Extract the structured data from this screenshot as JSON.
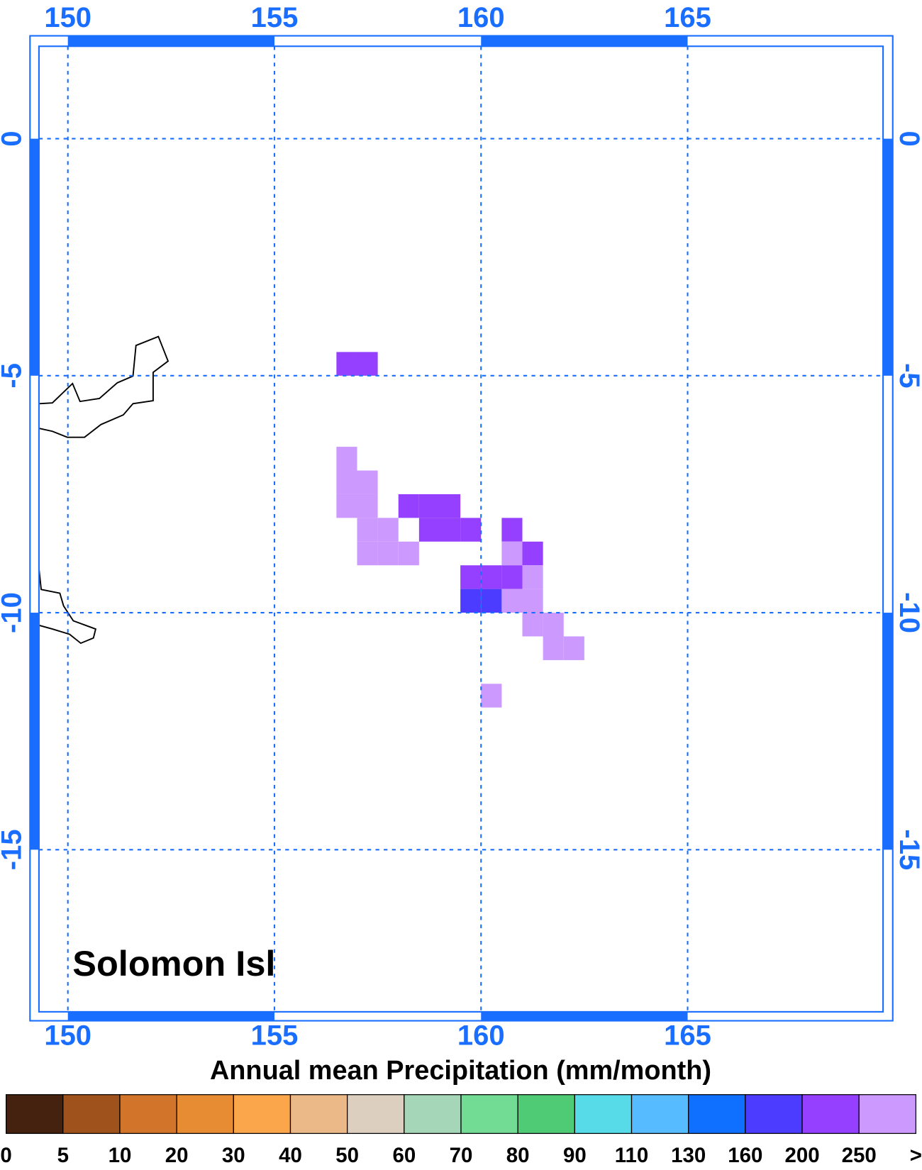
{
  "chart_data": {
    "type": "map",
    "title": "Solomon Isl",
    "xlim": [
      149.3,
      169.73
    ],
    "ylim": [
      -18.42,
      1.95
    ],
    "xticks": [
      150,
      155,
      160,
      165
    ],
    "yticks": [
      0,
      -5,
      -10,
      -15
    ],
    "grid": true,
    "axis_color": "#1a6eff",
    "colorbar": {
      "title": "Annual mean Precipitation (mm/month)",
      "labels": [
        0,
        5,
        10,
        20,
        30,
        40,
        50,
        60,
        70,
        80,
        90,
        110,
        130,
        160,
        200,
        250,
        ">"
      ],
      "colors": [
        "#44220f",
        "#a0521c",
        "#d2742a",
        "#e88c34",
        "#fba64a",
        "#ebb987",
        "#dccfc0",
        "#a6d6b8",
        "#72db94",
        "#4ecb74",
        "#58dbe8",
        "#57bbff",
        "#0f6fff",
        "#4b3cff",
        "#9640ff",
        "#cc99ff"
      ]
    },
    "cells": [
      {
        "lon": 156.5,
        "lat": -4.5,
        "color": "#9640ff"
      },
      {
        "lon": 157.0,
        "lat": -4.5,
        "color": "#9640ff"
      },
      {
        "lon": 156.5,
        "lat": -6.5,
        "color": "#cc99ff"
      },
      {
        "lon": 156.5,
        "lat": -7.0,
        "color": "#cc99ff"
      },
      {
        "lon": 156.5,
        "lat": -7.5,
        "color": "#cc99ff"
      },
      {
        "lon": 157.0,
        "lat": -7.0,
        "color": "#cc99ff"
      },
      {
        "lon": 157.0,
        "lat": -7.5,
        "color": "#cc99ff"
      },
      {
        "lon": 157.0,
        "lat": -8.0,
        "color": "#cc99ff"
      },
      {
        "lon": 157.0,
        "lat": -8.5,
        "color": "#cc99ff"
      },
      {
        "lon": 158.0,
        "lat": -7.5,
        "color": "#9640ff"
      },
      {
        "lon": 158.5,
        "lat": -7.5,
        "color": "#9640ff"
      },
      {
        "lon": 159.0,
        "lat": -7.5,
        "color": "#9640ff"
      },
      {
        "lon": 157.5,
        "lat": -8.0,
        "color": "#cc99ff"
      },
      {
        "lon": 157.5,
        "lat": -8.5,
        "color": "#cc99ff"
      },
      {
        "lon": 158.0,
        "lat": -8.5,
        "color": "#cc99ff"
      },
      {
        "lon": 158.5,
        "lat": -8.0,
        "color": "#9640ff"
      },
      {
        "lon": 159.0,
        "lat": -8.0,
        "color": "#9640ff"
      },
      {
        "lon": 159.5,
        "lat": -8.0,
        "color": "#9640ff"
      },
      {
        "lon": 160.5,
        "lat": -8.0,
        "color": "#9640ff"
      },
      {
        "lon": 160.5,
        "lat": -8.5,
        "color": "#cc99ff"
      },
      {
        "lon": 161.0,
        "lat": -8.5,
        "color": "#9640ff"
      },
      {
        "lon": 159.5,
        "lat": -9.0,
        "color": "#9640ff"
      },
      {
        "lon": 160.0,
        "lat": -9.0,
        "color": "#9640ff"
      },
      {
        "lon": 160.5,
        "lat": -9.0,
        "color": "#9640ff"
      },
      {
        "lon": 161.0,
        "lat": -9.0,
        "color": "#cc99ff"
      },
      {
        "lon": 159.5,
        "lat": -9.5,
        "color": "#4b3cff"
      },
      {
        "lon": 160.0,
        "lat": -9.5,
        "color": "#4b3cff"
      },
      {
        "lon": 160.5,
        "lat": -9.5,
        "color": "#cc99ff"
      },
      {
        "lon": 161.0,
        "lat": -9.5,
        "color": "#cc99ff"
      },
      {
        "lon": 161.0,
        "lat": -10.0,
        "color": "#cc99ff"
      },
      {
        "lon": 161.5,
        "lat": -10.0,
        "color": "#cc99ff"
      },
      {
        "lon": 161.5,
        "lat": -10.5,
        "color": "#cc99ff"
      },
      {
        "lon": 162.0,
        "lat": -10.5,
        "color": "#cc99ff"
      },
      {
        "lon": 160.0,
        "lat": -11.5,
        "color": "#cc99ff"
      }
    ]
  }
}
